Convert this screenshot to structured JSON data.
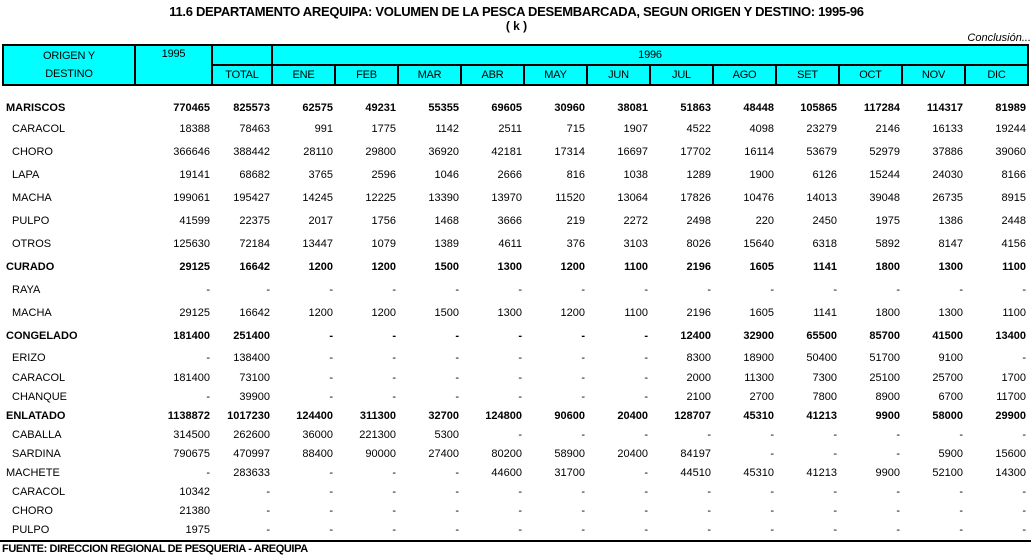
{
  "title": "11.6  DEPARTAMENTO AREQUIPA:  VOLUMEN DE LA PESCA DESEMBARCADA, SEGUN ORIGEN Y DESTINO: 1995-96",
  "units": "( k )",
  "continuation_note": "Conclusión...",
  "source": "FUENTE: DIRECCION REGIONAL DE PESQUERIA - AREQUIPA",
  "accent_color": "#00FFFF",
  "table": {
    "header": {
      "origin_line1": "ORIGEN Y",
      "origin_line2": "DESTINO",
      "year_1995": "1995",
      "total_label": "TOTAL",
      "year_1996": "1996",
      "months": [
        "ENE",
        "FEB",
        "MAR",
        "ABR",
        "MAY",
        "JUN",
        "JUL",
        "AGO",
        "SET",
        "OCT",
        "NOV",
        "DIC"
      ]
    },
    "rows": [
      {
        "label": "MARISCOS",
        "bold": true,
        "indent": false,
        "values": [
          "770465",
          "825573",
          "62575",
          "49231",
          "55355",
          "69605",
          "30960",
          "38081",
          "51863",
          "48448",
          "105865",
          "117284",
          "114317",
          "81989"
        ]
      },
      {
        "label": "CARACOL",
        "bold": false,
        "indent": true,
        "values": [
          "18388",
          "78463",
          "991",
          "1775",
          "1142",
          "2511",
          "715",
          "1907",
          "4522",
          "4098",
          "23279",
          "2146",
          "16133",
          "19244"
        ]
      },
      {
        "label": "CHORO",
        "bold": false,
        "indent": true,
        "values": [
          "366646",
          "388442",
          "28110",
          "29800",
          "36920",
          "42181",
          "17314",
          "16697",
          "17702",
          "16114",
          "53679",
          "52979",
          "37886",
          "39060"
        ]
      },
      {
        "label": "LAPA",
        "bold": false,
        "indent": true,
        "values": [
          "19141",
          "68682",
          "3765",
          "2596",
          "1046",
          "2666",
          "816",
          "1038",
          "1289",
          "1900",
          "6126",
          "15244",
          "24030",
          "8166"
        ]
      },
      {
        "label": "MACHA",
        "bold": false,
        "indent": true,
        "values": [
          "199061",
          "195427",
          "14245",
          "12225",
          "13390",
          "13970",
          "11520",
          "13064",
          "17826",
          "10476",
          "14013",
          "39048",
          "26735",
          "8915"
        ]
      },
      {
        "label": "PULPO",
        "bold": false,
        "indent": true,
        "values": [
          "41599",
          "22375",
          "2017",
          "1756",
          "1468",
          "3666",
          "219",
          "2272",
          "2498",
          "220",
          "2450",
          "1975",
          "1386",
          "2448"
        ]
      },
      {
        "label": "OTROS",
        "bold": false,
        "indent": true,
        "values": [
          "125630",
          "72184",
          "13447",
          "1079",
          "1389",
          "4611",
          "376",
          "3103",
          "8026",
          "15640",
          "6318",
          "5892",
          "8147",
          "4156"
        ]
      },
      {
        "label": "CURADO",
        "bold": true,
        "indent": false,
        "values": [
          "29125",
          "16642",
          "1200",
          "1200",
          "1500",
          "1300",
          "1200",
          "1100",
          "2196",
          "1605",
          "1141",
          "1800",
          "1300",
          "1100"
        ]
      },
      {
        "label": "RAYA",
        "bold": false,
        "indent": true,
        "values": [
          "-",
          "-",
          "-",
          "-",
          "-",
          "-",
          "-",
          "-",
          "-",
          "-",
          "-",
          "-",
          "-",
          "-"
        ]
      },
      {
        "label": "MACHA",
        "bold": false,
        "indent": true,
        "values": [
          "29125",
          "16642",
          "1200",
          "1200",
          "1500",
          "1300",
          "1200",
          "1100",
          "2196",
          "1605",
          "1141",
          "1800",
          "1300",
          "1100"
        ]
      },
      {
        "label": "CONGELADO",
        "bold": true,
        "indent": false,
        "values": [
          "181400",
          "251400",
          "-",
          "-",
          "-",
          "-",
          "-",
          "-",
          "12400",
          "32900",
          "65500",
          "85700",
          "41500",
          "13400"
        ]
      },
      {
        "label": "ERIZO",
        "bold": false,
        "indent": true,
        "values": [
          "-",
          "138400",
          "-",
          "-",
          "-",
          "-",
          "-",
          "-",
          "8300",
          "18900",
          "50400",
          "51700",
          "9100",
          "-"
        ]
      },
      {
        "label": "CARACOL",
        "bold": false,
        "indent": true,
        "values": [
          "181400",
          "73100",
          "-",
          "-",
          "-",
          "-",
          "-",
          "-",
          "2000",
          "11300",
          "7300",
          "25100",
          "25700",
          "1700"
        ]
      },
      {
        "label": "CHANQUE",
        "bold": false,
        "indent": true,
        "values": [
          "-",
          "39900",
          "-",
          "-",
          "-",
          "-",
          "-",
          "-",
          "2100",
          "2700",
          "7800",
          "8900",
          "6700",
          "11700"
        ]
      },
      {
        "label": "ENLATADO",
        "bold": true,
        "indent": false,
        "values": [
          "1138872",
          "1017230",
          "124400",
          "311300",
          "32700",
          "124800",
          "90600",
          "20400",
          "128707",
          "45310",
          "41213",
          "9900",
          "58000",
          "29900"
        ]
      },
      {
        "label": "CABALLA",
        "bold": false,
        "indent": true,
        "values": [
          "314500",
          "262600",
          "36000",
          "221300",
          "5300",
          "-",
          "-",
          "-",
          "-",
          "-",
          "-",
          "-",
          "-",
          "-"
        ]
      },
      {
        "label": "SARDINA",
        "bold": false,
        "indent": true,
        "values": [
          "790675",
          "470997",
          "88400",
          "90000",
          "27400",
          "80200",
          "58900",
          "20400",
          "84197",
          "-",
          "-",
          "-",
          "5900",
          "15600"
        ]
      },
      {
        "label": "MACHETE",
        "bold": false,
        "indent": false,
        "values": [
          "-",
          "283633",
          "-",
          "-",
          "-",
          "44600",
          "31700",
          "-",
          "44510",
          "45310",
          "41213",
          "9900",
          "52100",
          "14300"
        ]
      },
      {
        "label": "CARACOL",
        "bold": false,
        "indent": true,
        "values": [
          "10342",
          "-",
          "-",
          "-",
          "-",
          "-",
          "-",
          "-",
          "-",
          "-",
          "-",
          "-",
          "-",
          "-"
        ]
      },
      {
        "label": "CHORO",
        "bold": false,
        "indent": true,
        "values": [
          "21380",
          "-",
          "-",
          "-",
          "-",
          "-",
          "-",
          "-",
          "-",
          "-",
          "-",
          "-",
          "-",
          "-"
        ]
      },
      {
        "label": "PULPO",
        "bold": false,
        "indent": true,
        "values": [
          "1975",
          "-",
          "-",
          "-",
          "-",
          "-",
          "-",
          "-",
          "-",
          "-",
          "-",
          "-",
          "-",
          "-"
        ]
      }
    ]
  }
}
